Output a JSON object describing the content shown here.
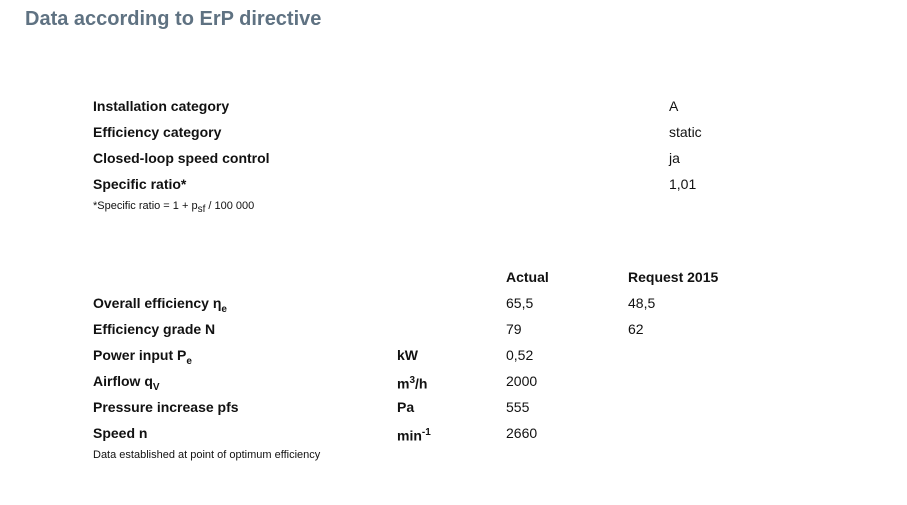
{
  "title": "Data according to ErP directive",
  "classification": {
    "rows": [
      {
        "label": "Installation category",
        "value": "A"
      },
      {
        "label": "Efficiency category",
        "value": "static"
      },
      {
        "label": "Closed-loop speed control",
        "value": "ja"
      },
      {
        "label": "Specific ratio*",
        "value": "1,01"
      }
    ],
    "footnote": {
      "text": "*Specific ratio = 1 + p",
      "sub": "sf",
      "rest": " / 100 000"
    }
  },
  "performance": {
    "columns": [
      "Actual",
      "Request 2015"
    ],
    "rows": [
      {
        "label": "Overall efficiency η",
        "label_sub": "e",
        "actual": "65,5",
        "request": "48,5"
      },
      {
        "label": "Efficiency grade N",
        "actual": "79",
        "request": "62"
      },
      {
        "label": "Power input P",
        "label_sub": "e",
        "unit": "kW",
        "actual": "0,52"
      },
      {
        "label": "Airflow q",
        "label_sub": "V",
        "unit": "m",
        "unit_sup": "3",
        "unit_rest": "/h",
        "actual": "2000"
      },
      {
        "label": "Pressure increase pfs",
        "unit": "Pa",
        "actual": "555"
      },
      {
        "label": "Speed n",
        "unit": "min",
        "unit_sup": "-1",
        "actual": "2660"
      }
    ],
    "footnote": "Data established at point of optimum efficiency"
  }
}
